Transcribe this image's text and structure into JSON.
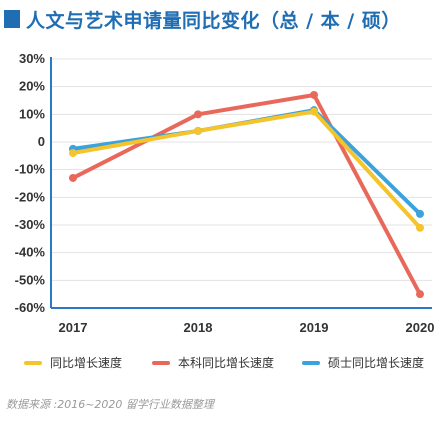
{
  "title": "人文与艺术申请量同比变化（总 / 本 / 硕）",
  "source": "数据来源 :2016~2020 留学行业数据整理",
  "colors": {
    "title": "#1f6db3",
    "total": "#f4c42a",
    "undergrad": "#e8695c",
    "master": "#3aa2dc",
    "axis": "#2b78c9",
    "grid": "#e3e3e3"
  },
  "chart_data": {
    "type": "line",
    "title": "人文与艺术申请量同比变化（总 / 本 / 硕）",
    "x": [
      "2017",
      "2018",
      "2019",
      "2020"
    ],
    "ylim": [
      -60,
      30
    ],
    "yticks": [
      "30%",
      "20%",
      "10%",
      "0",
      "-10%",
      "-20%",
      "-30%",
      "-40%",
      "-50%",
      "-60%"
    ],
    "ytick_values": [
      30,
      20,
      10,
      0,
      -10,
      -20,
      -30,
      -40,
      -50,
      -60
    ],
    "grid": "horizontal",
    "legend": "bottom",
    "series": [
      {
        "name": "同比增长速度",
        "color": "#f4c42a",
        "values": [
          -4,
          4,
          11,
          -31
        ]
      },
      {
        "name": "本科同比增长速度",
        "color": "#e8695c",
        "values": [
          -13,
          10,
          17,
          -55
        ]
      },
      {
        "name": "硕士同比增长速度",
        "color": "#3aa2dc",
        "values": [
          -2.5,
          4,
          11.5,
          -26
        ]
      }
    ]
  }
}
